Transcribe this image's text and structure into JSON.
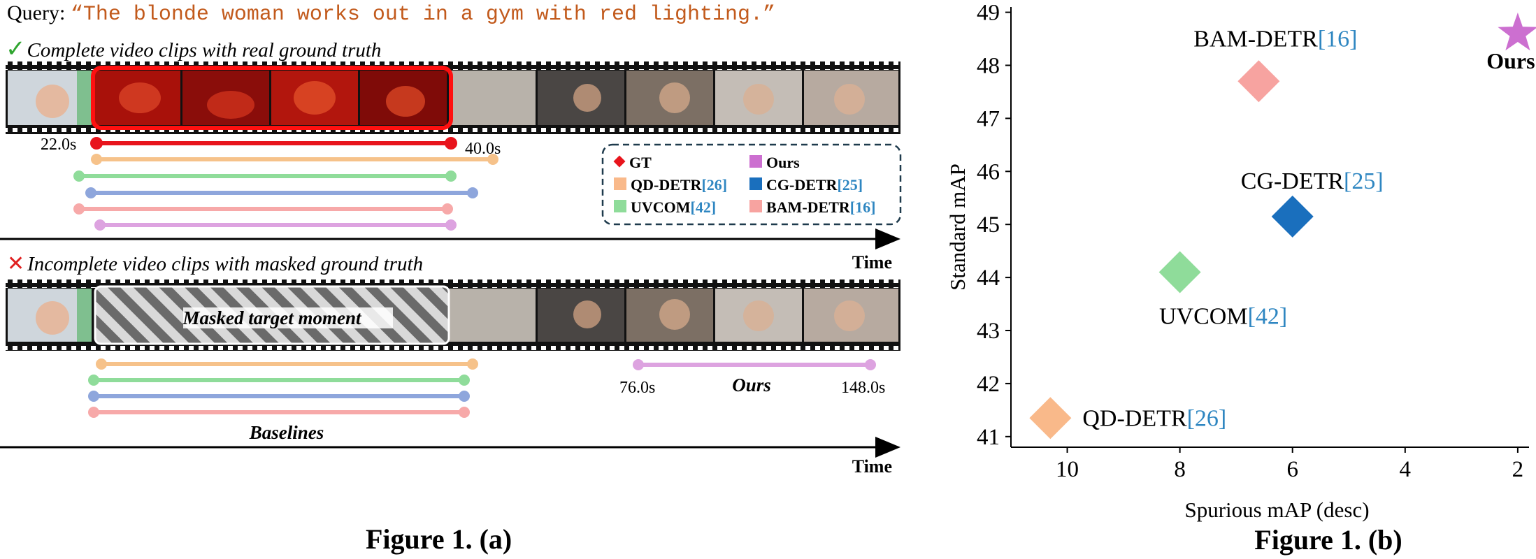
{
  "query": {
    "label": "Query:",
    "text": "“The blonde woman works out in a gym with red lighting.”"
  },
  "panel_a": {
    "complete_caption": "Complete video clips with real ground truth",
    "incomplete_caption": "Incomplete video clips with masked ground truth",
    "gt_start_label": "22.0s",
    "gt_end_label": "40.0s",
    "masked_label": "Masked target moment",
    "baselines_label": "Baselines",
    "ours_label": "Ours",
    "ours_start_label": "76.0s",
    "ours_end_label": "148.0s",
    "time_label": "Time",
    "legend": [
      {
        "name": "GT",
        "color": "#e8141c",
        "marker": "diamond"
      },
      {
        "name": "Ours",
        "color": "#cc6fd0",
        "marker": "square"
      },
      {
        "name": "QD-DETR",
        "ref": "[26]",
        "color": "#f9b98a",
        "marker": "square"
      },
      {
        "name": "CG-DETR",
        "ref": "[25]",
        "color": "#1a6fbd",
        "marker": "square"
      },
      {
        "name": "UVCOM",
        "ref": "[42]",
        "color": "#8fdc9a",
        "marker": "square"
      },
      {
        "name": "BAM-DETR",
        "ref": "[16]",
        "color": "#f7a3a0",
        "marker": "square"
      }
    ],
    "line_colors": {
      "gt": "#e8141c",
      "qd": "#f6c28a",
      "uvcom": "#8fdc9a",
      "cg": "#8ea6dc",
      "bam": "#f7a9a9",
      "ours": "#dda3e0"
    },
    "title": "Figure 1. (a)"
  },
  "chart_data": {
    "type": "scatter",
    "title": "Figure 1. (b)",
    "xlabel": "Spurious mAP (desc)",
    "ylabel": "Standard mAP",
    "xlim": [
      11,
      1.8
    ],
    "ylim": [
      40.8,
      49.1
    ],
    "xticks": [
      10,
      8,
      6,
      4,
      2
    ],
    "yticks": [
      41,
      42,
      43,
      44,
      45,
      46,
      47,
      48,
      49
    ],
    "series": [
      {
        "name": "QD-DETR",
        "ref": "[26]",
        "x": 10.3,
        "y": 41.35,
        "color": "#f9b98a",
        "marker": "diamond"
      },
      {
        "name": "UVCOM",
        "ref": "[42]",
        "x": 8.0,
        "y": 44.1,
        "color": "#8fdc9a",
        "marker": "diamond"
      },
      {
        "name": "CG-DETR",
        "ref": "[25]",
        "x": 6.0,
        "y": 45.15,
        "color": "#1a6fbd",
        "marker": "diamond"
      },
      {
        "name": "BAM-DETR",
        "ref": "[16]",
        "x": 6.6,
        "y": 47.7,
        "color": "#f7a3a0",
        "marker": "diamond"
      },
      {
        "name": "Ours",
        "ref": "",
        "x": 2.0,
        "y": 48.6,
        "color": "#cc6fd0",
        "marker": "star"
      }
    ]
  }
}
